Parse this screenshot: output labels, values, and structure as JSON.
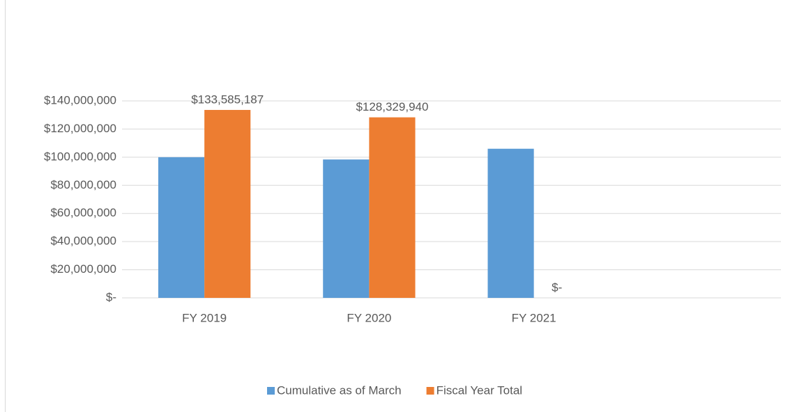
{
  "chart_data": {
    "type": "bar",
    "categories": [
      "FY 2019",
      "FY 2020",
      "FY 2021",
      null
    ],
    "series": [
      {
        "name": "Cumulative as of March",
        "color": "#5b9bd5",
        "values": [
          100000000,
          98370000,
          106000000,
          null
        ]
      },
      {
        "name": "Fiscal Year Total",
        "color": "#ed7d31",
        "values": [
          133585187,
          128329940,
          0,
          null
        ],
        "value_labels": [
          "$133,585,187",
          "$128,329,940",
          "$-",
          null
        ]
      }
    ],
    "ylim": [
      0,
      140000000
    ],
    "yticks": [
      {
        "value": 0,
        "label": "$-"
      },
      {
        "value": 20000000,
        "label": "$20,000,000"
      },
      {
        "value": 40000000,
        "label": "$40,000,000"
      },
      {
        "value": 60000000,
        "label": "$60,000,000"
      },
      {
        "value": 80000000,
        "label": "$80,000,000"
      },
      {
        "value": 100000000,
        "label": "$100,000,000"
      },
      {
        "value": 120000000,
        "label": "$120,000,000"
      },
      {
        "value": 140000000,
        "label": "$140,000,000"
      }
    ],
    "grid": true,
    "legend": "bottom"
  }
}
